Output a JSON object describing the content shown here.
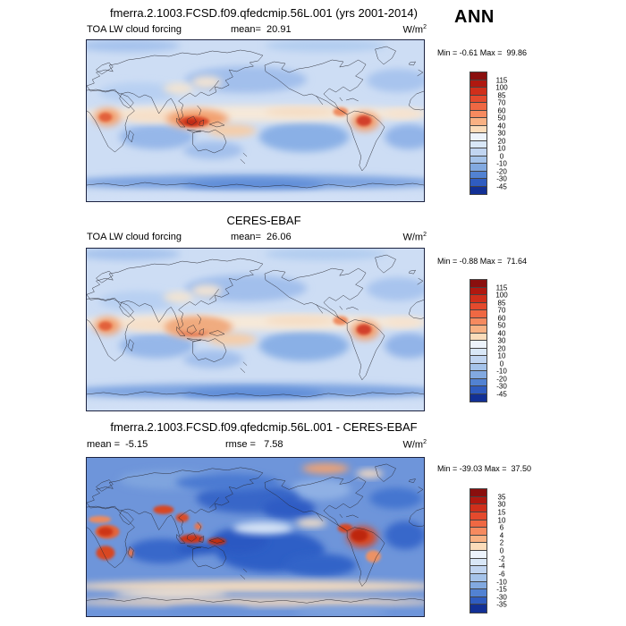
{
  "figure": {
    "main_title": "fmerra.2.1003.FCSD.f09.qfedcmip.56L.001 (yrs 2001-2014)",
    "season": "ANN"
  },
  "units": {
    "base": "W/m",
    "exponent": "2"
  },
  "panels": [
    {
      "variable": "TOA LW cloud forcing",
      "mean": "mean=  20.91",
      "minmax": "Min = -0.61 Max =  99.86",
      "ticks": [
        "115",
        "100",
        "85",
        "70",
        "60",
        "50",
        "40",
        "30",
        "20",
        "10",
        "0",
        "-10",
        "-20",
        "-30",
        "-45"
      ]
    },
    {
      "title": "CERES-EBAF",
      "variable": "TOA LW cloud forcing",
      "mean": "mean=  26.06",
      "minmax": "Min = -0.88 Max =  71.64",
      "ticks": [
        "115",
        "100",
        "85",
        "70",
        "60",
        "50",
        "40",
        "30",
        "20",
        "10",
        "0",
        "-10",
        "-20",
        "-30",
        "-45"
      ]
    },
    {
      "title": "fmerra.2.1003.FCSD.f09.qfedcmip.56L.001 - CERES-EBAF",
      "mean": "mean =  -5.15",
      "rmse": "rmse =   7.58",
      "minmax": "Min = -39.03 Max =  37.50",
      "ticks": [
        "35",
        "30",
        "15",
        "10",
        "6",
        "4",
        "2",
        "0",
        "-2",
        "-4",
        "-6",
        "-10",
        "-15",
        "-30",
        "-35"
      ]
    }
  ],
  "palette": [
    "#8a0f0e",
    "#b01810",
    "#d02f1b",
    "#e44a2d",
    "#ef6843",
    "#f68a5f",
    "#f9b183",
    "#fbdcba",
    "#edf3fb",
    "#d9e7f7",
    "#c1d5f1",
    "#a5c3ea",
    "#82a9e0",
    "#5282d2",
    "#2f5cc0",
    "#123095"
  ],
  "chart_data": [
    {
      "type": "heatmap",
      "subtype": "global-latlon-contour-map",
      "title": "fmerra.2.1003.FCSD.f09.qfedcmip.56L.001 (yrs 2001-2014)",
      "season": "ANN",
      "variable": "TOA LW cloud forcing",
      "units": "W/m2",
      "mean": 20.91,
      "min": -0.61,
      "max": 99.86,
      "contour_levels": [
        -45,
        -30,
        -20,
        -10,
        0,
        10,
        20,
        30,
        40,
        50,
        60,
        70,
        85,
        100,
        115
      ],
      "legend_position": "right",
      "notes": "Blue-to-red filled contours on cylindrical world map (0-360E). Warm maxima over central Africa, Indo-Pacific warm pool and Amazonia; blue subtropical oceans and Southern Ocean."
    },
    {
      "type": "heatmap",
      "subtype": "global-latlon-contour-map",
      "title": "CERES-EBAF",
      "variable": "TOA LW cloud forcing",
      "units": "W/m2",
      "mean": 26.06,
      "min": -0.88,
      "max": 71.64,
      "contour_levels": [
        -45,
        -30,
        -20,
        -10,
        0,
        10,
        20,
        30,
        40,
        50,
        60,
        70,
        85,
        100,
        115
      ],
      "legend_position": "right",
      "notes": "Observed CERES-EBAF field; same color scale as model panel."
    },
    {
      "type": "heatmap",
      "subtype": "global-latlon-difference-map",
      "title": "fmerra.2.1003.FCSD.f09.qfedcmip.56L.001 - CERES-EBAF",
      "units": "W/m2",
      "mean": -5.15,
      "rmse": 7.58,
      "min": -39.03,
      "max": 37.5,
      "contour_levels": [
        -35,
        -30,
        -15,
        -10,
        -6,
        -4,
        -2,
        0,
        2,
        4,
        6,
        10,
        15,
        30,
        35
      ],
      "legend_position": "right",
      "notes": "Mostly negative (blue) bias over oceans; positive (red) bias over tropical land: Africa, India/SE Asia, Maritime Continent, Amazonia; weak positive ring near Antarctic coast."
    }
  ]
}
